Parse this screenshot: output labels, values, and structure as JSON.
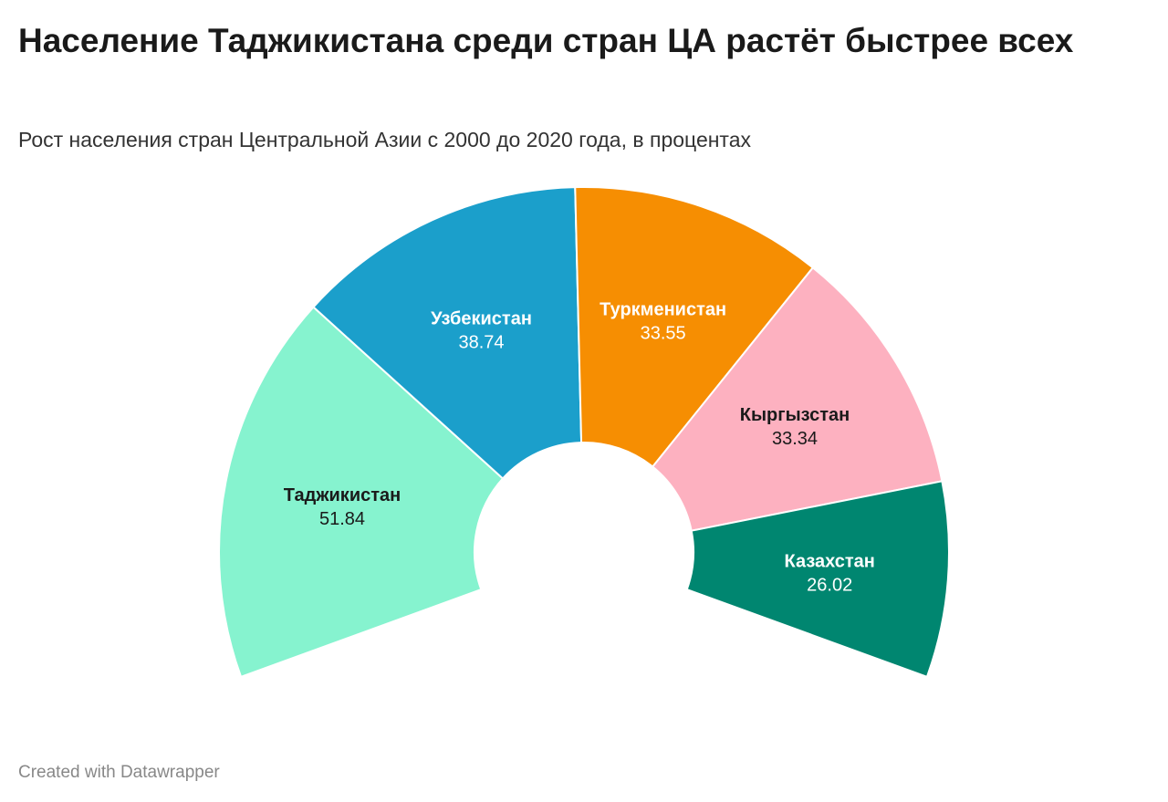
{
  "header": {
    "title": "Население Таджикистана среди стран ЦА растёт быстрее всех",
    "subtitle": "Рост населения стран Центральной Азии с 2000 до 2020 года, в процентах"
  },
  "footer": {
    "credit": "Created with Datawrapper"
  },
  "chart_data": {
    "type": "pie",
    "variant": "half-donut",
    "title": "Население Таджикистана среди стран ЦА растёт быстрее всех",
    "subtitle": "Рост населения стран Центральной Азии с 2000 до 2020 года, в процентах",
    "slices": [
      {
        "name": "Таджикистан",
        "value": 51.84,
        "color": "#86f3cf",
        "label_color": "#1a1a1a"
      },
      {
        "name": "Узбекистан",
        "value": 38.74,
        "color": "#1b9fcb",
        "label_color": "#ffffff"
      },
      {
        "name": "Туркменистан",
        "value": 33.55,
        "color": "#f68e02",
        "label_color": "#ffffff"
      },
      {
        "name": "Кыргызстан",
        "value": 33.34,
        "color": "#fdb1c0",
        "label_color": "#1a1a1a"
      },
      {
        "name": "Казахстан",
        "value": 26.02,
        "color": "#008670",
        "label_color": "#ffffff"
      }
    ]
  }
}
